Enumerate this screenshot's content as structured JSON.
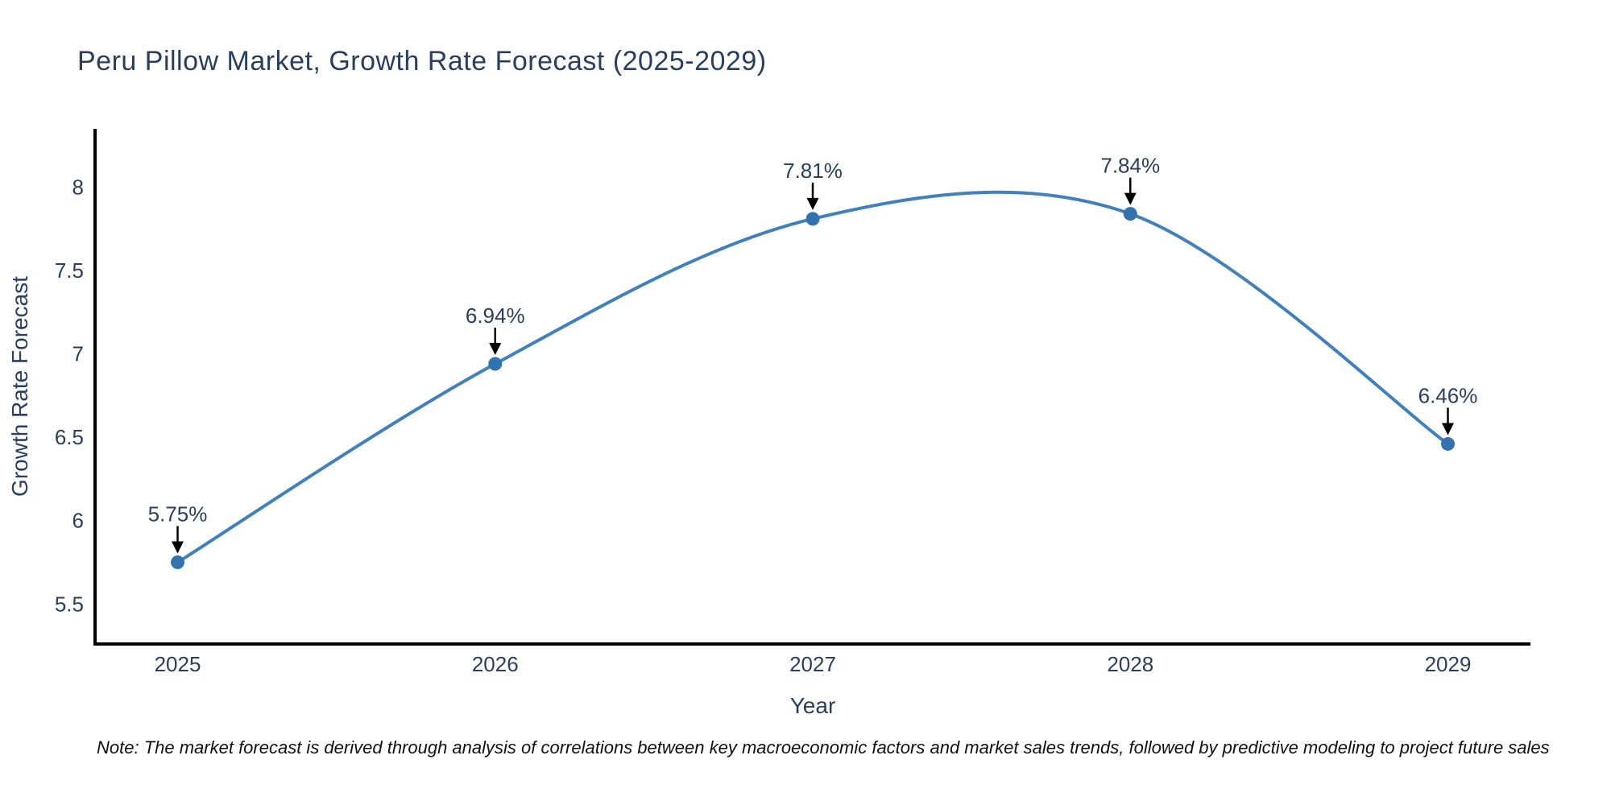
{
  "page": {
    "background": "#ffffff"
  },
  "footnote": "Note: The market forecast is derived through analysis of correlations between key macroeconomic factors and market sales trends, followed by predictive modeling to project future sales",
  "chart_data": {
    "type": "line",
    "title": "Peru Pillow Market, Growth Rate Forecast (2025-2029)",
    "xlabel": "Year",
    "ylabel": "Growth Rate Forecast",
    "x": [
      2025,
      2026,
      2027,
      2028,
      2029
    ],
    "series": [
      {
        "name": "Growth Rate Forecast",
        "values": [
          5.75,
          6.94,
          7.81,
          7.84,
          6.46
        ]
      }
    ],
    "point_labels": [
      "5.75%",
      "6.94%",
      "7.81%",
      "7.84%",
      "6.46%"
    ],
    "xticks": [
      2025,
      2026,
      2027,
      2028,
      2029
    ],
    "yticks": [
      5.5,
      6,
      6.5,
      7,
      7.5,
      8
    ],
    "xlim": [
      2024.74,
      2029.26
    ],
    "ylim": [
      5.26,
      8.35
    ],
    "grid": false,
    "legend": false,
    "line_shape": "spline",
    "colors": {
      "line": "#4080bd",
      "marker": "#3272ae",
      "axis": "#000000",
      "text": "#2a3f5f",
      "annotation_text": "#2a3f5f",
      "annotation_arrow": "#000000"
    }
  }
}
